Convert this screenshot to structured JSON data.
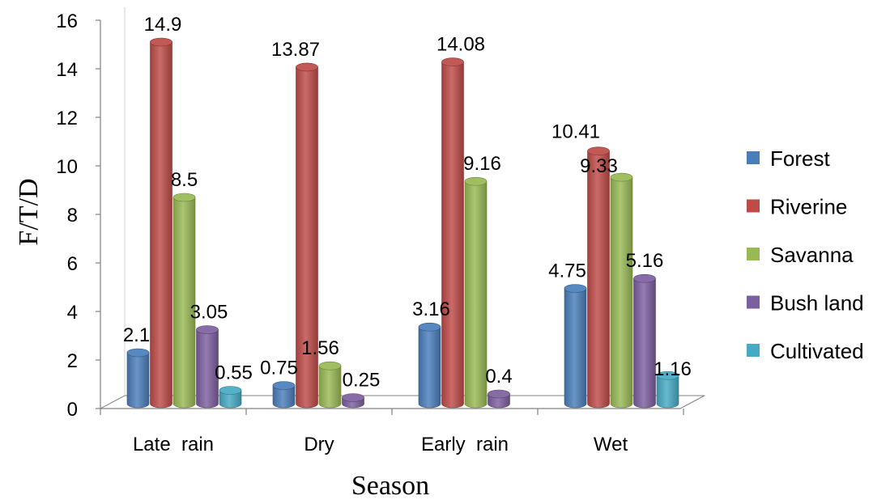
{
  "chart_data": {
    "type": "bar",
    "title": "",
    "xlabel": "Season",
    "ylabel": "F/T/D",
    "ylim": [
      0,
      16
    ],
    "yticks": [
      0,
      2,
      4,
      6,
      8,
      10,
      12,
      14,
      16
    ],
    "grid": false,
    "legend_position": "right",
    "categories": [
      "Late  rain",
      "Dry",
      "Early  rain",
      "Wet"
    ],
    "series": [
      {
        "name": "Forest",
        "color": "#4a7ebb",
        "values": [
          2.1,
          0.75,
          3.16,
          4.75
        ],
        "labels": [
          "2.1",
          "0.75",
          "3.16",
          "4.75"
        ]
      },
      {
        "name": "Riverine",
        "color": "#be4b48",
        "values": [
          14.9,
          13.87,
          14.08,
          10.41
        ],
        "labels": [
          "14.9",
          "13.87",
          "14.08",
          "10.41"
        ]
      },
      {
        "name": "Savanna",
        "color": "#98b954",
        "values": [
          8.5,
          1.56,
          9.16,
          9.33
        ],
        "labels": [
          "8.5",
          "1.56",
          "9.16",
          "9.33"
        ]
      },
      {
        "name": "Bush land",
        "color": "#7d5fa0",
        "values": [
          3.05,
          0.25,
          0.4,
          5.16
        ],
        "labels": [
          "3.05",
          "0.25",
          "0.4",
          "5.16"
        ]
      },
      {
        "name": "Cultivated",
        "color": "#46aac5",
        "values": [
          0.55,
          0,
          0,
          1.16
        ],
        "labels": [
          "0.55",
          "",
          "",
          "1.16"
        ]
      }
    ]
  }
}
